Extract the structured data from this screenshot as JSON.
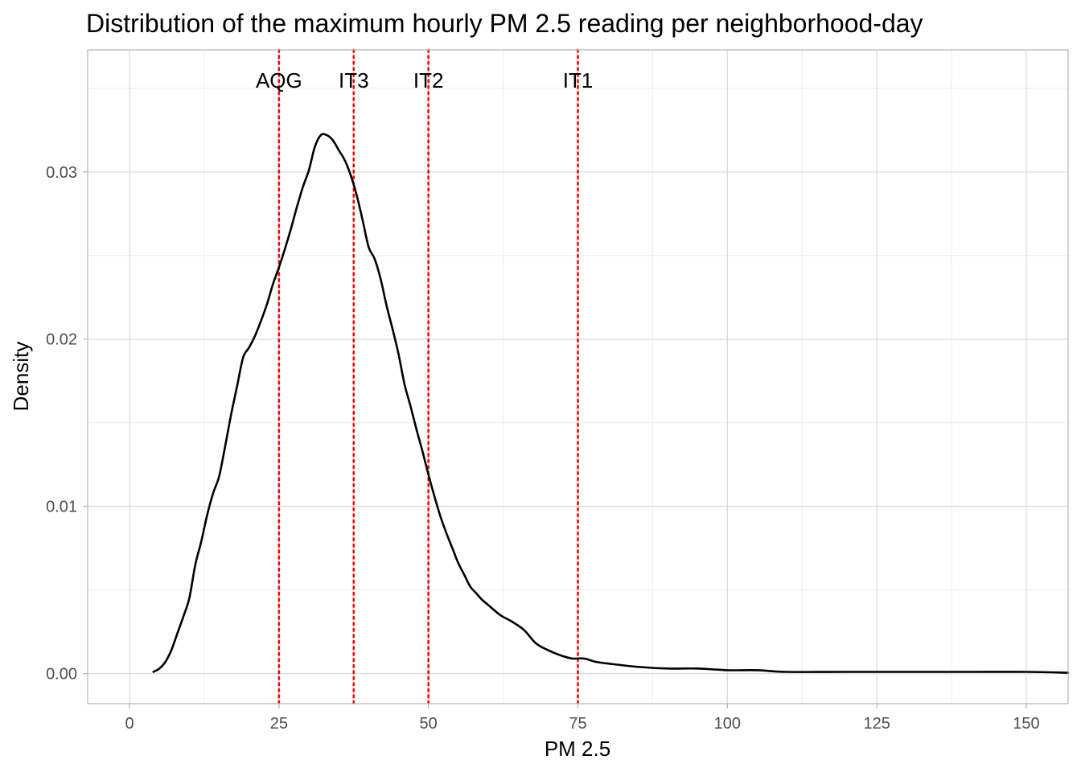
{
  "chart_data": {
    "type": "line",
    "title": "Distribution of the maximum hourly PM 2.5 reading per neighborhood-day",
    "xlabel": "PM 2.5",
    "ylabel": "Density",
    "xlim": [
      -7,
      157
    ],
    "ylim": [
      -0.0018,
      0.0373
    ],
    "x_ticks": [
      0,
      25,
      50,
      75,
      100,
      125,
      150
    ],
    "x_tick_labels": [
      "0",
      "25",
      "50",
      "75",
      "100",
      "125",
      "150"
    ],
    "y_ticks": [
      0.0,
      0.01,
      0.02,
      0.03
    ],
    "y_tick_labels": [
      "0.00",
      "0.01",
      "0.02",
      "0.03"
    ],
    "grid": true,
    "legend": "none",
    "line_color": "#000000",
    "reference_color": "#ff0000",
    "reference_lines": [
      {
        "x": 25,
        "label": "AQG"
      },
      {
        "x": 37.5,
        "label": "IT3"
      },
      {
        "x": 50,
        "label": "IT2"
      },
      {
        "x": 75,
        "label": "IT1"
      }
    ],
    "series": [
      {
        "x": [
          4,
          5,
          6,
          7,
          8,
          9,
          10,
          11,
          12,
          13,
          14,
          15,
          16,
          17,
          18,
          19,
          20,
          21,
          22,
          23,
          24,
          25,
          26,
          27,
          28,
          29,
          30,
          31,
          32,
          33,
          34,
          35,
          36,
          37,
          38,
          39,
          40,
          41,
          42,
          43,
          44,
          45,
          46,
          47,
          48,
          49,
          50,
          51,
          52,
          53,
          54,
          55,
          56,
          57,
          58,
          59,
          60,
          62,
          64,
          66,
          68,
          70,
          72,
          74,
          76,
          78,
          80,
          85,
          90,
          95,
          100,
          105,
          110,
          120,
          130,
          140,
          150,
          157
        ],
        "y": [
          0.0001,
          0.0003,
          0.0007,
          0.0014,
          0.0024,
          0.0034,
          0.0045,
          0.0065,
          0.0079,
          0.0095,
          0.0108,
          0.0118,
          0.0136,
          0.0155,
          0.0172,
          0.0189,
          0.0195,
          0.0202,
          0.0211,
          0.0221,
          0.0233,
          0.0243,
          0.0254,
          0.0266,
          0.0279,
          0.0291,
          0.0301,
          0.0315,
          0.0322,
          0.0322,
          0.0319,
          0.0313,
          0.0307,
          0.0298,
          0.0286,
          0.0271,
          0.0255,
          0.0248,
          0.0236,
          0.022,
          0.0206,
          0.0191,
          0.0173,
          0.016,
          0.0146,
          0.0133,
          0.0119,
          0.0106,
          0.0094,
          0.0084,
          0.0075,
          0.0066,
          0.0059,
          0.0052,
          0.0048,
          0.0044,
          0.0041,
          0.0035,
          0.0031,
          0.0026,
          0.0018,
          0.0014,
          0.0011,
          0.0009,
          0.0009,
          0.0007,
          0.0006,
          0.0004,
          0.0003,
          0.0003,
          0.0002,
          0.0002,
          0.0001,
          0.0001,
          0.0001,
          0.0001,
          0.0001,
          5e-05
        ]
      }
    ]
  }
}
